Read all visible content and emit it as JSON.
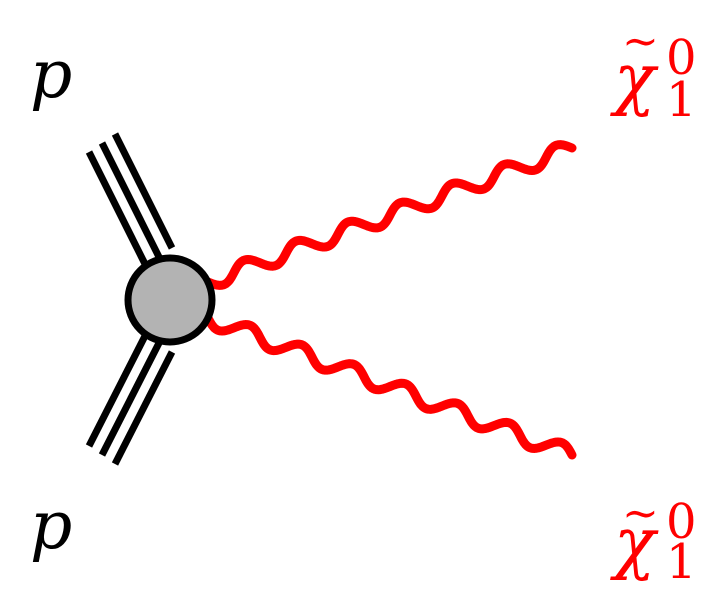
{
  "diagram": {
    "incoming": [
      {
        "label": "p"
      },
      {
        "label": "p"
      }
    ],
    "outgoing": [
      {
        "symbol": "χ",
        "tilde": "~",
        "superscript": "0",
        "subscript": "1"
      },
      {
        "symbol": "χ",
        "tilde": "~",
        "superscript": "0",
        "subscript": "1"
      }
    ],
    "colors": {
      "proton_lines": "#000000",
      "neutralino": "#ff0000",
      "vertex_fill": "#b3b3b3",
      "vertex_stroke": "#000000"
    }
  }
}
